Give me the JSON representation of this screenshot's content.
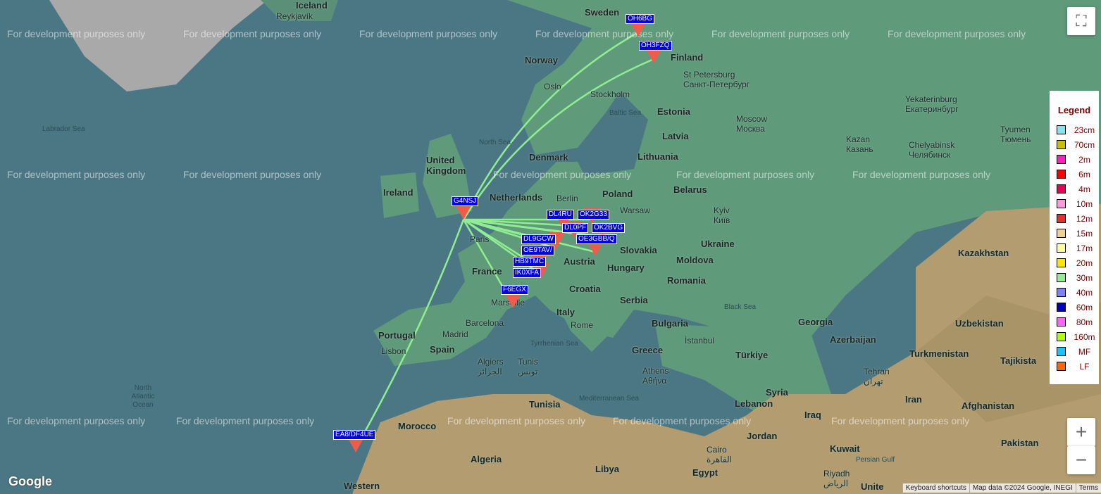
{
  "watermark": "For development purposes only",
  "places": [
    {
      "t": "Iceland",
      "c": "country"
    },
    {
      "t": "Reykjavík",
      "c": ""
    },
    {
      "t": "Sweden",
      "c": "country"
    },
    {
      "t": "Norway",
      "c": "country"
    },
    {
      "t": "Finland",
      "c": "country"
    },
    {
      "t": "Oslo",
      "c": ""
    },
    {
      "t": "Stockholm",
      "c": ""
    },
    {
      "t": "Baltic Sea",
      "c": "sea"
    },
    {
      "t": "North Sea",
      "c": "sea"
    },
    {
      "t": "Labrador Sea",
      "c": "sea"
    },
    {
      "t": "Estonia",
      "c": "country"
    },
    {
      "t": "Latvia",
      "c": "country"
    },
    {
      "t": "Lithuania",
      "c": "country"
    },
    {
      "t": "Denmark",
      "c": "country"
    },
    {
      "t": "United Kingdom",
      "c": "country"
    },
    {
      "t": "Ireland",
      "c": "country"
    },
    {
      "t": "Netherlands",
      "c": "country"
    },
    {
      "t": "Berlin",
      "c": ""
    },
    {
      "t": "Poland",
      "c": "country"
    },
    {
      "t": "Warsaw",
      "c": ""
    },
    {
      "t": "Belarus",
      "c": "country"
    },
    {
      "t": "Kyiv Київ",
      "c": ""
    },
    {
      "t": "Ukraine",
      "c": "country"
    },
    {
      "t": "Moldova",
      "c": "country"
    },
    {
      "t": "Romania",
      "c": "country"
    },
    {
      "t": "Slovakia",
      "c": "country"
    },
    {
      "t": "Austria",
      "c": "country"
    },
    {
      "t": "Hungary",
      "c": "country"
    },
    {
      "t": "Croatia",
      "c": "country"
    },
    {
      "t": "Serbia",
      "c": "country"
    },
    {
      "t": "Bulgaria",
      "c": "country"
    },
    {
      "t": "Italy",
      "c": "country"
    },
    {
      "t": "Rome",
      "c": ""
    },
    {
      "t": "France",
      "c": "country"
    },
    {
      "t": "Paris",
      "c": ""
    },
    {
      "t": "Marseille",
      "c": ""
    },
    {
      "t": "Barcelona",
      "c": ""
    },
    {
      "t": "Madrid",
      "c": ""
    },
    {
      "t": "Spain",
      "c": "country"
    },
    {
      "t": "Portugal",
      "c": "country"
    },
    {
      "t": "Lisbon",
      "c": ""
    },
    {
      "t": "Tyrrhenian Sea",
      "c": "sea"
    },
    {
      "t": "Algiers الجزائر",
      "c": ""
    },
    {
      "t": "Tunis تونس",
      "c": ""
    },
    {
      "t": "Tunisia",
      "c": "country"
    },
    {
      "t": "Mediterranean Sea",
      "c": "sea"
    },
    {
      "t": "Greece",
      "c": "country"
    },
    {
      "t": "Athens Αθήνα",
      "c": ""
    },
    {
      "t": "İstanbul",
      "c": ""
    },
    {
      "t": "Türkiye",
      "c": "country"
    },
    {
      "t": "Black Sea",
      "c": "sea"
    },
    {
      "t": "Georgia",
      "c": "country"
    },
    {
      "t": "Azerbaijan",
      "c": "country"
    },
    {
      "t": "Syria",
      "c": "country"
    },
    {
      "t": "Lebanon",
      "c": "country"
    },
    {
      "t": "Iraq",
      "c": "country"
    },
    {
      "t": "Jordan",
      "c": "country"
    },
    {
      "t": "Cairo القاهرة",
      "c": ""
    },
    {
      "t": "Egypt",
      "c": "country"
    },
    {
      "t": "Libya",
      "c": "country"
    },
    {
      "t": "Algeria",
      "c": "country"
    },
    {
      "t": "Morocco",
      "c": "country"
    },
    {
      "t": "Western",
      "c": "country"
    },
    {
      "t": "North Atlantic Ocean",
      "c": "sea"
    },
    {
      "t": "Kuwait",
      "c": "country"
    },
    {
      "t": "Riyadh الرياض",
      "c": ""
    },
    {
      "t": "Persian Gulf",
      "c": "sea"
    },
    {
      "t": "Tehran تهران",
      "c": ""
    },
    {
      "t": "Iran",
      "c": "country"
    },
    {
      "t": "Turkmenistan",
      "c": "country"
    },
    {
      "t": "Uzbekistan",
      "c": "country"
    },
    {
      "t": "Afghanistan",
      "c": "country"
    },
    {
      "t": "Pakistan",
      "c": "country"
    },
    {
      "t": "Kazakhstan",
      "c": "country"
    },
    {
      "t": "Moscow Москва",
      "c": ""
    },
    {
      "t": "St Petersburg Санкт-Петербург",
      "c": ""
    },
    {
      "t": "Kazan Казань",
      "c": ""
    },
    {
      "t": "Yekaterinburg Екатеринбург",
      "c": ""
    },
    {
      "t": "Chelyabinsk Челябинск",
      "c": ""
    },
    {
      "t": "Tyumen Тюмень",
      "c": ""
    },
    {
      "t": "Tajikista",
      "c": "country"
    },
    {
      "t": "Unite",
      "c": "country"
    }
  ],
  "stations": [
    {
      "call": "OH6BG"
    },
    {
      "call": "OH3FZQ"
    },
    {
      "call": "G4NSJ"
    },
    {
      "call": "DL4RU"
    },
    {
      "call": "OK2G33"
    },
    {
      "call": "DL0PF"
    },
    {
      "call": "OK2BVG"
    },
    {
      "call": "DL9GCW"
    },
    {
      "call": "OE9TAV/"
    },
    {
      "call": "OE3GBB/Q"
    },
    {
      "call": "HB9TMC"
    },
    {
      "call": "IK0XFA"
    },
    {
      "call": "F6EGX"
    },
    {
      "call": "EA8/DF4UE"
    }
  ],
  "path_color": "#90ee90",
  "marker_color": "#f25a4a",
  "legend": {
    "title": "Legend",
    "items": [
      {
        "label": "23cm",
        "color": "#87e4ee"
      },
      {
        "label": "70cm",
        "color": "#c8c000"
      },
      {
        "label": "2m",
        "color": "#ff1fc0"
      },
      {
        "label": "6m",
        "color": "#ff0000"
      },
      {
        "label": "4m",
        "color": "#e8005a"
      },
      {
        "label": "10m",
        "color": "#ff99dd"
      },
      {
        "label": "12m",
        "color": "#e03030"
      },
      {
        "label": "15m",
        "color": "#f0d090"
      },
      {
        "label": "17m",
        "color": "#ffff99"
      },
      {
        "label": "20m",
        "color": "#ffe600"
      },
      {
        "label": "30m",
        "color": "#90ee90"
      },
      {
        "label": "40m",
        "color": "#8080ff"
      },
      {
        "label": "60m",
        "color": "#0000c0"
      },
      {
        "label": "80m",
        "color": "#ff66ff"
      },
      {
        "label": "160m",
        "color": "#b0ff00"
      },
      {
        "label": "MF",
        "color": "#20c0ff"
      },
      {
        "label": "LF",
        "color": "#ff6600"
      }
    ]
  },
  "controls": {
    "fullscreen": "⛶",
    "zoom_in": "+",
    "zoom_out": "−"
  },
  "attribution": {
    "shortcuts": "Keyboard shortcuts",
    "data": "Map data ©2024 Google, INEGI",
    "terms": "Terms"
  },
  "logo": "Google"
}
